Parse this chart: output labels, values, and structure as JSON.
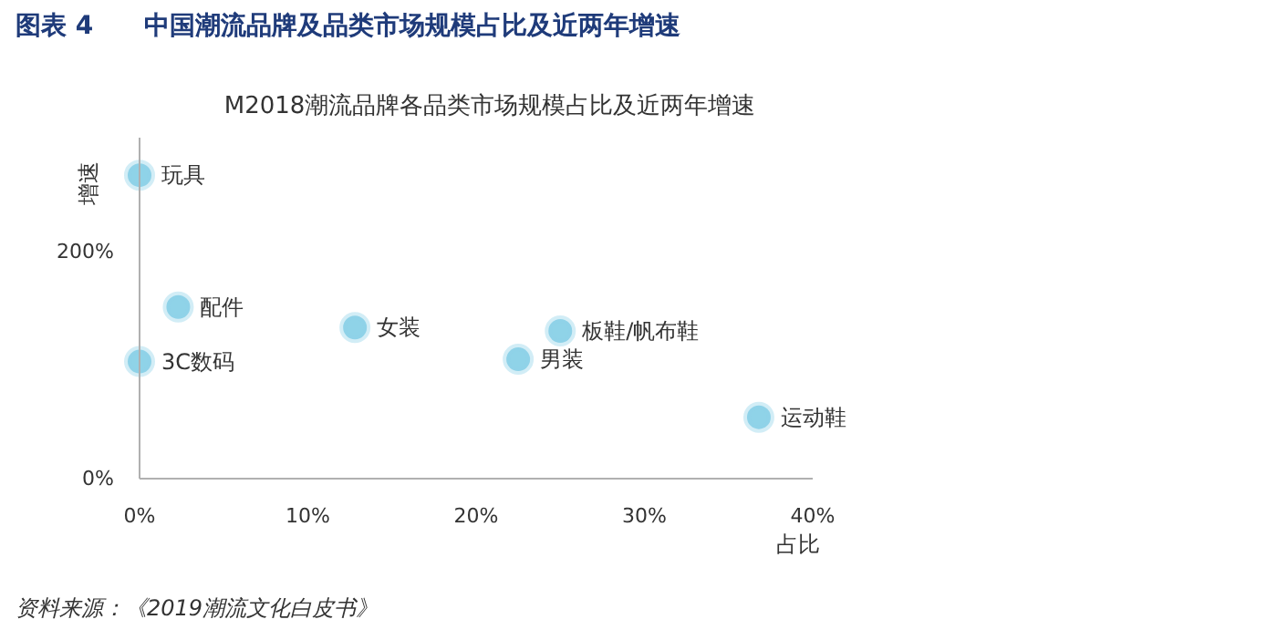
{
  "chart_data": {
    "type": "scatter",
    "title": "图表 4　　中国潮流品牌及品类市场规模占比及近两年增速",
    "subtitle": "M2018潮流品牌各品类市场规模占比及近两年增速",
    "xlabel": "占比",
    "ylabel": "增速",
    "xlim": [
      0,
      40
    ],
    "ylim": [
      0,
      300
    ],
    "xticks": [
      {
        "value": 0,
        "label": "0%"
      },
      {
        "value": 10,
        "label": "10%"
      },
      {
        "value": 20,
        "label": "20%"
      },
      {
        "value": 30,
        "label": "30%"
      },
      {
        "value": 40,
        "label": "40%"
      }
    ],
    "yticks": [
      {
        "value": 0,
        "label": "0%"
      },
      {
        "value": 200,
        "label": "200%"
      }
    ],
    "marker": "circle",
    "legend": false,
    "grid": false,
    "series": [
      {
        "name": "玩具",
        "color": "#8fd3e8",
        "x": [
          0
        ],
        "values": [
          267
        ]
      },
      {
        "name": "配件",
        "color": "#8fd3e8",
        "x": [
          2.3
        ],
        "values": [
          151
        ]
      },
      {
        "name": "3C数码",
        "color": "#8fd3e8",
        "x": [
          0
        ],
        "values": [
          103
        ]
      },
      {
        "name": "女装",
        "color": "#8fd3e8",
        "x": [
          12.8
        ],
        "values": [
          133
        ]
      },
      {
        "name": "男装",
        "color": "#8fd3e8",
        "x": [
          22.5
        ],
        "values": [
          105
        ]
      },
      {
        "name": "板鞋/帆布鞋",
        "color": "#8fd3e8",
        "x": [
          25
        ],
        "values": [
          130
        ]
      },
      {
        "name": "运动鞋",
        "color": "#8fd3e8",
        "x": [
          36.8
        ],
        "values": [
          54
        ]
      }
    ],
    "annotations": [
      "资料来源：《2019潮流文化白皮书》"
    ]
  }
}
